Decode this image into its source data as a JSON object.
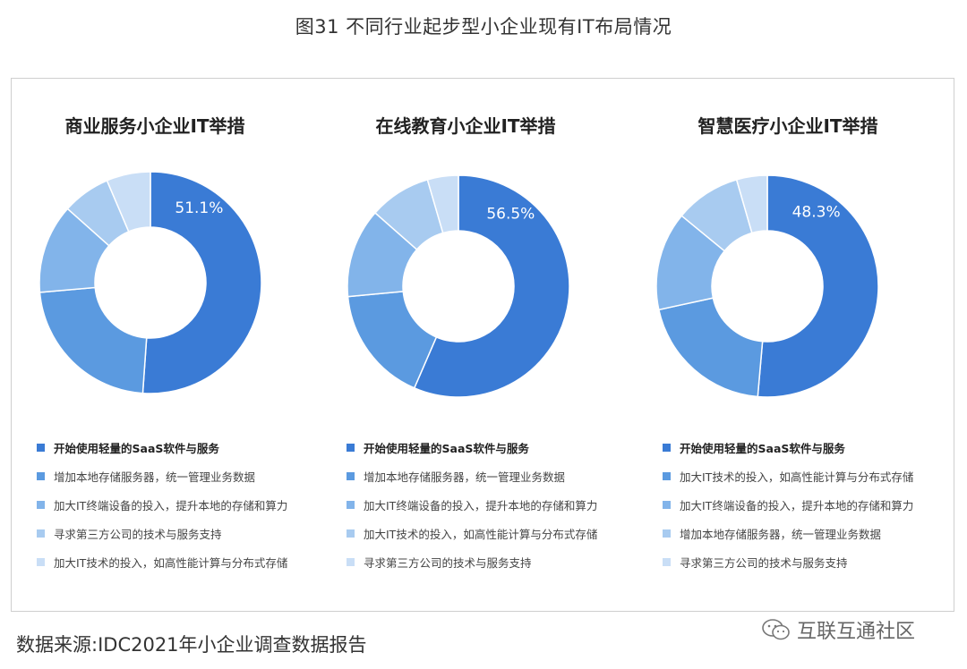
{
  "figure_title": "图31  不同行业起步型小企业现有IT布局情况",
  "source": "数据来源:IDC2021年小企业调查数据报告",
  "watermark": {
    "text": "互联互通社区",
    "icon": "wechat-icon"
  },
  "colors": [
    "#3a7bd5",
    "#5b9ae0",
    "#82b4ea",
    "#a8cbf0",
    "#c9def6"
  ],
  "chart_data": [
    {
      "type": "pie",
      "donut": true,
      "title": "商业服务小企业IT举措",
      "categories": [
        "开始使用轻量的SaaS软件与服务",
        "增加本地存储服务器，统一管理业务数据",
        "加大IT终端设备的投入，提升本地的存储和算力",
        "寻求第三方公司的技术与服务支持",
        "加大IT技术的投入，如高性能计算与分布式存储"
      ],
      "values": [
        51.1,
        22.5,
        13.0,
        7.0,
        6.4
      ],
      "data_labels": [
        "51.1%",
        null,
        null,
        null,
        null
      ]
    },
    {
      "type": "pie",
      "donut": true,
      "title": "在线教育小企业IT举措",
      "categories": [
        "开始使用轻量的SaaS软件与服务",
        "增加本地存储服务器，统一管理业务数据",
        "加大IT终端设备的投入，提升本地的存储和算力",
        "加大IT技术的投入，如高性能计算与分布式存储",
        "寻求第三方公司的技术与服务支持"
      ],
      "values": [
        56.5,
        17.0,
        13.0,
        9.0,
        4.5
      ],
      "data_labels": [
        "56.5%",
        null,
        null,
        null,
        null
      ]
    },
    {
      "type": "pie",
      "donut": true,
      "title": "智慧医疗小企业IT举措",
      "categories": [
        "开始使用轻量的SaaS软件与服务",
        "加大IT技术的投入，如高性能计算与分布式存储",
        "加大IT终端设备的投入，提升本地的存储和算力",
        "增加本地存储服务器，统一管理业务数据",
        "寻求第三方公司的技术与服务支持"
      ],
      "values": [
        48.3,
        19.0,
        13.5,
        9.0,
        4.2
      ],
      "data_labels": [
        "48.3%",
        null,
        null,
        null,
        null
      ]
    }
  ]
}
